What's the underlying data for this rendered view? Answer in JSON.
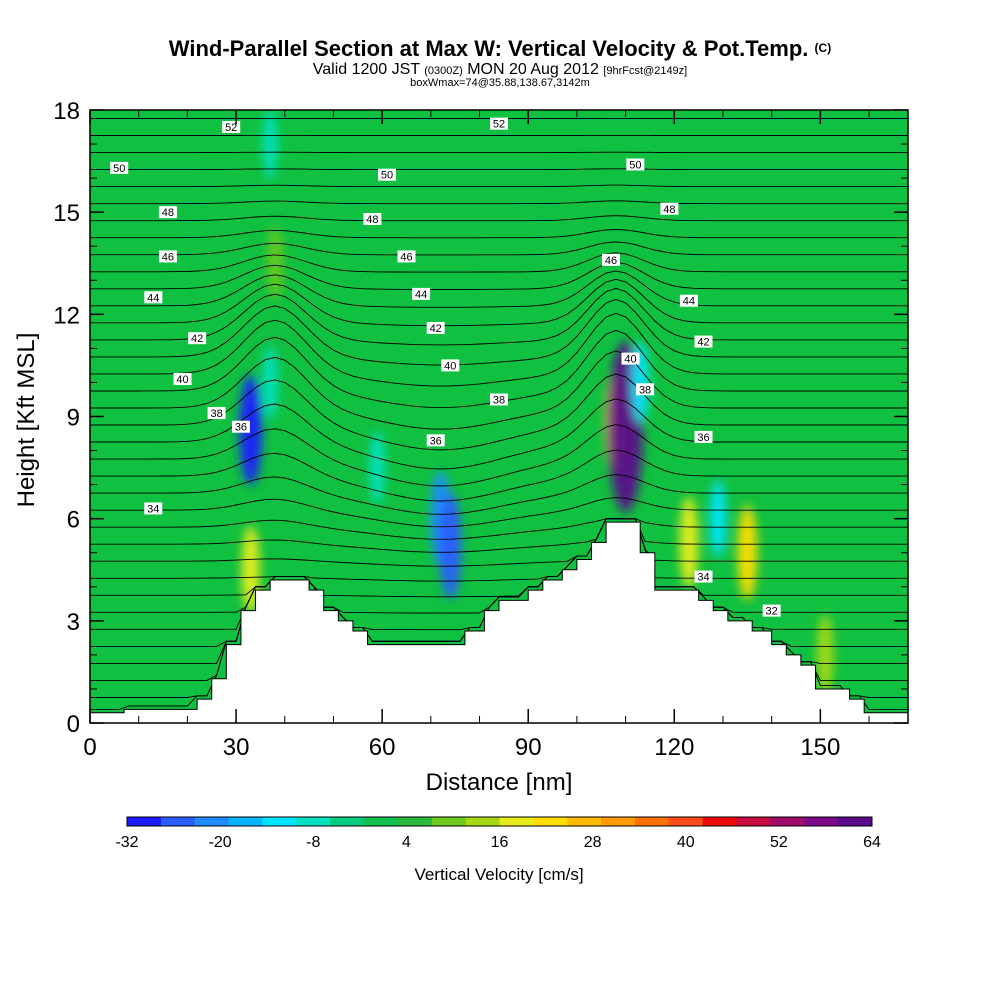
{
  "title": {
    "main": "Wind-Parallel Section at Max W: Vertical Velocity & Pot.Temp.",
    "copyright": "(C)",
    "valid_prefix": "Valid 1200 JST",
    "valid_utc": "(0300Z)",
    "valid_date": "MON 20 Aug 2012",
    "forecast": "[9hrFcst@2149z]",
    "box_info": "boxWmax=74@35.88,138.67,3142m"
  },
  "chart_data": {
    "type": "heatmap",
    "xlabel": "Distance [nm]",
    "ylabel": "Height [Kft MSL]",
    "xlim": [
      0,
      168
    ],
    "ylim": [
      0,
      18
    ],
    "xticks": [
      "0",
      "30",
      "60",
      "90",
      "120",
      "150"
    ],
    "yticks": [
      "0",
      "3",
      "6",
      "9",
      "12",
      "15",
      "18"
    ],
    "colorbar": {
      "label": "Vertical Velocity [cm/s]",
      "tick_labels": [
        "-32",
        "-20",
        "-8",
        "4",
        "16",
        "28",
        "40",
        "52",
        "64"
      ],
      "colors": [
        "#1a1aff",
        "#2a5cff",
        "#1f8bff",
        "#00b4ff",
        "#00e6ff",
        "#00e0c0",
        "#00cc80",
        "#10c050",
        "#2ab93a",
        "#6cc81f",
        "#a8d814",
        "#e8ec1a",
        "#ffdd00",
        "#ffbb00",
        "#ff9a00",
        "#ff7000",
        "#ff4a1a",
        "#ee0a0a",
        "#c80a40",
        "#a00a6a",
        "#7a0a8a",
        "#5a0a8a"
      ]
    },
    "terrain_nm_kft": [
      [
        0,
        0.3
      ],
      [
        7,
        0.3
      ],
      [
        7,
        0.4
      ],
      [
        22,
        0.4
      ],
      [
        22,
        0.7
      ],
      [
        25,
        0.7
      ],
      [
        25,
        1.3
      ],
      [
        28,
        1.3
      ],
      [
        28,
        2.3
      ],
      [
        31,
        2.3
      ],
      [
        31,
        3.3
      ],
      [
        34,
        3.3
      ],
      [
        34,
        3.9
      ],
      [
        37,
        3.9
      ],
      [
        37,
        4.2
      ],
      [
        45,
        4.2
      ],
      [
        45,
        3.9
      ],
      [
        48,
        3.9
      ],
      [
        48,
        3.3
      ],
      [
        51,
        3.3
      ],
      [
        51,
        3.0
      ],
      [
        54,
        3.0
      ],
      [
        54,
        2.7
      ],
      [
        57,
        2.7
      ],
      [
        57,
        2.3
      ],
      [
        77,
        2.3
      ],
      [
        77,
        2.7
      ],
      [
        81,
        2.7
      ],
      [
        81,
        3.3
      ],
      [
        84,
        3.3
      ],
      [
        84,
        3.6
      ],
      [
        90,
        3.6
      ],
      [
        90,
        3.9
      ],
      [
        93,
        3.9
      ],
      [
        93,
        4.2
      ],
      [
        97,
        4.2
      ],
      [
        97,
        4.5
      ],
      [
        100,
        4.5
      ],
      [
        100,
        4.8
      ],
      [
        103,
        4.8
      ],
      [
        103,
        5.3
      ],
      [
        106,
        5.3
      ],
      [
        106,
        5.9
      ],
      [
        113,
        5.9
      ],
      [
        113,
        5.0
      ],
      [
        116,
        5.0
      ],
      [
        116,
        3.9
      ],
      [
        125,
        3.9
      ],
      [
        125,
        3.6
      ],
      [
        128,
        3.6
      ],
      [
        128,
        3.3
      ],
      [
        131,
        3.3
      ],
      [
        131,
        3.0
      ],
      [
        136,
        3.0
      ],
      [
        136,
        2.7
      ],
      [
        140,
        2.7
      ],
      [
        140,
        2.3
      ],
      [
        143,
        2.3
      ],
      [
        143,
        2.0
      ],
      [
        146,
        2.0
      ],
      [
        146,
        1.7
      ],
      [
        149,
        1.7
      ],
      [
        149,
        1.0
      ],
      [
        156,
        1.0
      ],
      [
        156,
        0.7
      ],
      [
        159,
        0.7
      ],
      [
        159,
        0.3
      ],
      [
        168,
        0.3
      ]
    ],
    "velocity_features": [
      {
        "x": 33,
        "y": 4.5,
        "value": 18
      },
      {
        "x": 33,
        "y": 8.6,
        "value": -30
      },
      {
        "x": 37,
        "y": 10.0,
        "value": -10
      },
      {
        "x": 38,
        "y": 13.5,
        "value": 10
      },
      {
        "x": 37,
        "y": 17.0,
        "value": -8
      },
      {
        "x": 59,
        "y": 7.5,
        "value": -10
      },
      {
        "x": 72,
        "y": 6.0,
        "value": -22
      },
      {
        "x": 74,
        "y": 5.2,
        "value": -28
      },
      {
        "x": 108,
        "y": 8.8,
        "value": 28
      },
      {
        "x": 110,
        "y": 8.7,
        "value": 64
      },
      {
        "x": 113,
        "y": 10.0,
        "value": -14
      },
      {
        "x": 123,
        "y": 5.3,
        "value": 20
      },
      {
        "x": 129,
        "y": 6.0,
        "value": -12
      },
      {
        "x": 135,
        "y": 5.0,
        "value": 22
      },
      {
        "x": 151,
        "y": 2.0,
        "value": 14
      }
    ],
    "theta_contours": [
      {
        "label": "52",
        "label_pos": [
          29,
          17.5
        ],
        "label_pos2": [
          84,
          17.6
        ]
      },
      {
        "label": "50",
        "label_pos": [
          6,
          16.3
        ],
        "label_pos2": [
          61,
          16.1
        ],
        "label_pos3": [
          112,
          16.4
        ]
      },
      {
        "label": "48",
        "label_pos": [
          16,
          15.0
        ],
        "label_pos2": [
          58,
          14.8
        ],
        "label_pos3": [
          119,
          15.1
        ]
      },
      {
        "label": "46",
        "label_pos": [
          16,
          13.7
        ],
        "label_pos2": [
          65,
          13.7
        ],
        "label_pos3": [
          107,
          13.6
        ]
      },
      {
        "label": "44",
        "label_pos": [
          13,
          12.5
        ],
        "label_pos2": [
          68,
          12.6
        ],
        "label_pos3": [
          123,
          12.4
        ]
      },
      {
        "label": "42",
        "label_pos": [
          22,
          11.3
        ],
        "label_pos2": [
          71,
          11.6
        ],
        "label_pos3": [
          126,
          11.2
        ]
      },
      {
        "label": "40",
        "label_pos": [
          19,
          10.1
        ],
        "label_pos2": [
          74,
          10.5
        ],
        "label_pos3": [
          111,
          10.7
        ]
      },
      {
        "label": "38",
        "label_pos": [
          26,
          9.1
        ],
        "label_pos2": [
          84,
          9.5
        ],
        "label_pos3": [
          114,
          9.8
        ]
      },
      {
        "label": "36",
        "label_pos": [
          31,
          8.7
        ],
        "label_pos2": [
          71,
          8.3
        ],
        "label_pos3": [
          126,
          8.4
        ]
      },
      {
        "label": "34",
        "label_pos": [
          13,
          6.3
        ],
        "label_pos2": [
          126,
          4.3
        ]
      },
      {
        "label": "32",
        "label_pos": [
          140,
          3.3
        ]
      }
    ]
  }
}
